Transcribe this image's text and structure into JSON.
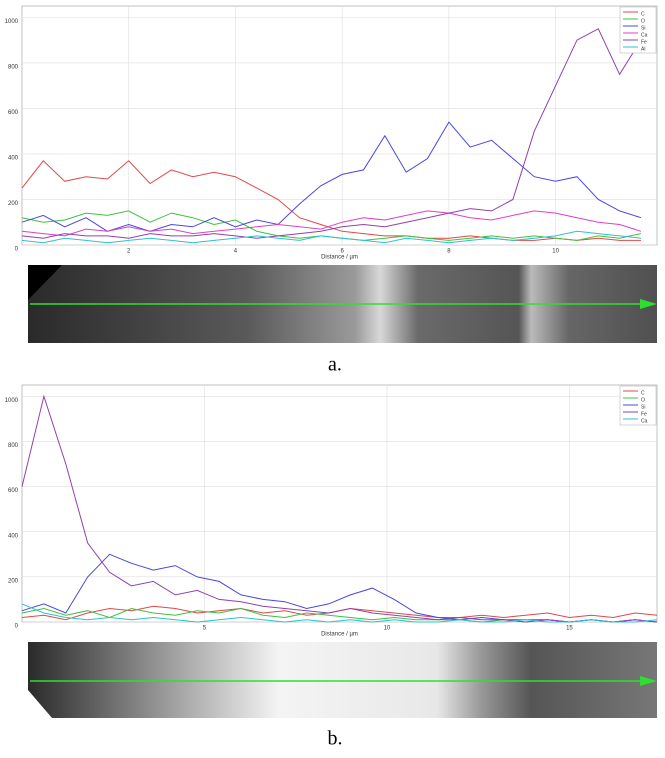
{
  "chart_data": [
    {
      "type": "line",
      "x_label": "Distance / µm",
      "x": [
        0,
        0.4,
        0.8,
        1.2,
        1.6,
        2,
        2.4,
        2.8,
        3.2,
        3.6,
        4,
        4.4,
        4.8,
        5.2,
        5.6,
        6,
        6.4,
        6.8,
        7.2,
        7.6,
        8,
        8.4,
        8.8,
        9.2,
        9.6,
        10,
        10.4,
        10.8,
        11.2,
        11.6
      ],
      "xlim": [
        0,
        11.9
      ],
      "xticks": [
        2,
        4,
        6,
        8,
        10
      ],
      "ylim": [
        0,
        1050
      ],
      "yticks": [
        0,
        200,
        400,
        600,
        800,
        1000
      ],
      "grid": true,
      "legend": "upper right",
      "series": [
        {
          "name": "C",
          "color": "#e04848",
          "values": [
            250,
            370,
            280,
            300,
            290,
            370,
            270,
            330,
            300,
            320,
            300,
            250,
            200,
            120,
            90,
            60,
            50,
            40,
            40,
            30,
            30,
            40,
            30,
            20,
            20,
            30,
            20,
            30,
            20,
            20
          ]
        },
        {
          "name": "O",
          "color": "#40c040",
          "values": [
            120,
            100,
            110,
            140,
            130,
            150,
            100,
            140,
            120,
            90,
            110,
            60,
            40,
            30,
            40,
            30,
            20,
            30,
            40,
            30,
            20,
            30,
            40,
            30,
            40,
            30,
            20,
            40,
            30,
            50
          ]
        },
        {
          "name": "Si",
          "color": "#4848e0",
          "values": [
            100,
            130,
            80,
            120,
            60,
            90,
            60,
            90,
            80,
            120,
            80,
            110,
            90,
            180,
            260,
            310,
            330,
            480,
            320,
            380,
            540,
            430,
            460,
            380,
            300,
            280,
            300,
            200,
            150,
            120
          ]
        },
        {
          "name": "Ca",
          "color": "#e040c0",
          "values": [
            60,
            50,
            40,
            70,
            60,
            80,
            60,
            70,
            50,
            60,
            70,
            80,
            90,
            80,
            70,
            100,
            120,
            110,
            130,
            150,
            140,
            120,
            110,
            130,
            150,
            140,
            120,
            100,
            90,
            60
          ]
        },
        {
          "name": "Fe",
          "color": "#9040b0",
          "values": [
            40,
            30,
            50,
            40,
            40,
            30,
            50,
            40,
            40,
            50,
            40,
            30,
            40,
            50,
            60,
            80,
            90,
            80,
            100,
            120,
            140,
            160,
            150,
            200,
            500,
            700,
            900,
            950,
            750,
            900
          ]
        },
        {
          "name": "Al",
          "color": "#30c0d0",
          "values": [
            20,
            10,
            30,
            20,
            10,
            20,
            30,
            20,
            10,
            20,
            30,
            40,
            30,
            20,
            40,
            30,
            20,
            10,
            30,
            20,
            10,
            20,
            30,
            20,
            30,
            40,
            60,
            50,
            40,
            30
          ]
        }
      ]
    },
    {
      "type": "line",
      "x_label": "Distance / µm",
      "x": [
        0,
        0.6,
        1.2,
        1.8,
        2.4,
        3,
        3.6,
        4.2,
        4.8,
        5.4,
        6,
        6.6,
        7.2,
        7.8,
        8.4,
        9,
        9.6,
        10.2,
        10.8,
        11.4,
        12,
        12.6,
        13.2,
        13.8,
        14.4,
        15,
        15.6,
        16.2,
        16.8,
        17.4
      ],
      "xlim": [
        0,
        17.4
      ],
      "xticks": [
        5,
        10,
        15
      ],
      "ylim": [
        0,
        1050
      ],
      "yticks": [
        0,
        200,
        400,
        600,
        800,
        1000
      ],
      "grid": true,
      "legend": "upper right",
      "series": [
        {
          "name": "C",
          "color": "#e04848",
          "values": [
            20,
            30,
            10,
            40,
            60,
            50,
            70,
            60,
            40,
            50,
            60,
            40,
            50,
            30,
            40,
            60,
            50,
            40,
            30,
            20,
            20,
            30,
            20,
            30,
            40,
            20,
            30,
            20,
            40,
            30
          ]
        },
        {
          "name": "O",
          "color": "#40c040",
          "values": [
            40,
            60,
            30,
            50,
            20,
            60,
            40,
            30,
            50,
            40,
            60,
            30,
            20,
            40,
            30,
            20,
            10,
            20,
            10,
            10,
            10,
            0,
            10,
            0,
            10,
            0,
            10,
            0,
            10,
            0
          ]
        },
        {
          "name": "Si",
          "color": "#4848e0",
          "values": [
            50,
            80,
            40,
            200,
            300,
            260,
            230,
            250,
            200,
            180,
            120,
            100,
            90,
            60,
            80,
            120,
            150,
            100,
            40,
            20,
            10,
            20,
            10,
            10,
            10,
            0,
            10,
            0,
            10,
            0
          ]
        },
        {
          "name": "Fe",
          "color": "#9040b0",
          "values": [
            600,
            1000,
            700,
            350,
            220,
            160,
            180,
            120,
            140,
            100,
            90,
            70,
            60,
            50,
            40,
            60,
            40,
            30,
            20,
            10,
            20,
            10,
            10,
            0,
            10,
            0,
            10,
            0,
            10,
            0
          ]
        },
        {
          "name": "Ca",
          "color": "#30c0d0",
          "values": [
            80,
            40,
            20,
            10,
            20,
            10,
            20,
            10,
            0,
            10,
            20,
            10,
            0,
            10,
            0,
            10,
            0,
            10,
            0,
            0,
            10,
            0,
            0,
            10,
            0,
            0,
            10,
            0,
            0,
            10
          ]
        }
      ]
    }
  ],
  "captions": [
    "a.",
    "b."
  ]
}
